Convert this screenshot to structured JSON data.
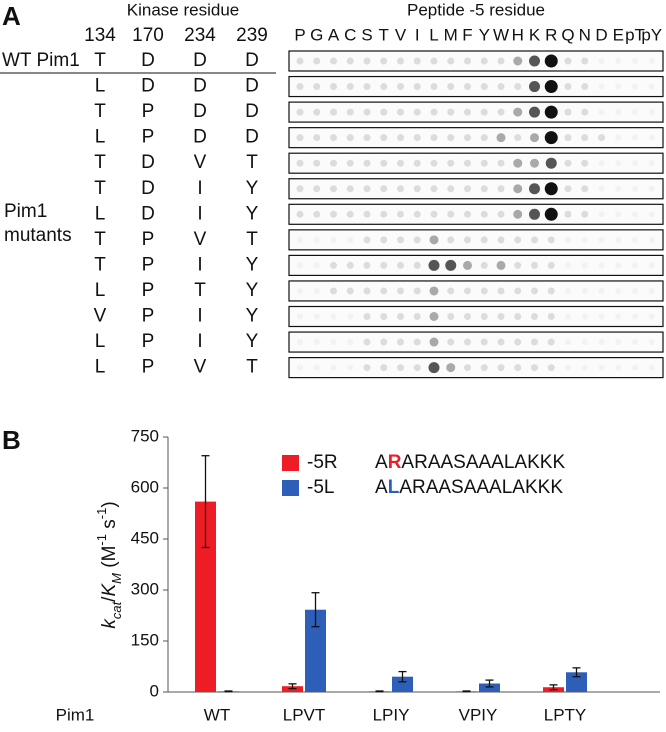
{
  "panel_a": {
    "label": "A",
    "kinase_header": "Kinase residue",
    "residue_numbers": [
      "134",
      "170",
      "234",
      "239"
    ],
    "peptide_header": "Peptide -5 residue",
    "peptide_residues": [
      "P",
      "G",
      "A",
      "C",
      "S",
      "T",
      "V",
      "I",
      "L",
      "M",
      "F",
      "Y",
      "W",
      "H",
      "K",
      "R",
      "Q",
      "N",
      "D",
      "E",
      "pT",
      "pY"
    ],
    "wt_label": "WT Pim1",
    "mutants_label": [
      "Pim1",
      "mutants"
    ],
    "rows": [
      [
        "T",
        "D",
        "D",
        "D"
      ],
      [
        "L",
        "D",
        "D",
        "D"
      ],
      [
        "T",
        "P",
        "D",
        "D"
      ],
      [
        "L",
        "P",
        "D",
        "D"
      ],
      [
        "T",
        "D",
        "V",
        "T"
      ],
      [
        "T",
        "D",
        "I",
        "Y"
      ],
      [
        "L",
        "D",
        "I",
        "Y"
      ],
      [
        "T",
        "P",
        "V",
        "T"
      ],
      [
        "T",
        "P",
        "I",
        "Y"
      ],
      [
        "L",
        "P",
        "T",
        "Y"
      ],
      [
        "V",
        "P",
        "I",
        "Y"
      ],
      [
        "L",
        "P",
        "I",
        "Y"
      ],
      [
        "L",
        "P",
        "V",
        "T"
      ]
    ],
    "spot_intensity": [
      [
        1,
        1,
        1,
        1,
        1,
        1,
        1,
        1,
        1,
        1,
        1,
        1,
        1,
        2,
        3,
        4,
        1,
        1,
        0,
        0,
        0,
        0
      ],
      [
        1,
        1,
        1,
        1,
        1,
        1,
        1,
        1,
        1,
        1,
        1,
        1,
        1,
        1,
        3,
        4,
        1,
        1,
        0,
        0,
        0,
        0
      ],
      [
        1,
        1,
        1,
        1,
        1,
        1,
        1,
        1,
        1,
        1,
        1,
        1,
        1,
        2,
        3,
        4,
        1,
        1,
        0,
        0,
        0,
        0
      ],
      [
        1,
        1,
        1,
        1,
        1,
        1,
        1,
        1,
        1,
        1,
        1,
        1,
        2,
        1,
        2,
        4,
        1,
        1,
        1,
        0,
        0,
        0
      ],
      [
        1,
        1,
        1,
        1,
        1,
        1,
        1,
        1,
        1,
        1,
        1,
        1,
        1,
        2,
        2,
        3,
        1,
        1,
        0,
        0,
        0,
        0
      ],
      [
        1,
        1,
        1,
        1,
        1,
        1,
        1,
        1,
        1,
        1,
        1,
        1,
        1,
        2,
        3,
        4,
        1,
        1,
        0,
        0,
        0,
        0
      ],
      [
        1,
        1,
        1,
        1,
        1,
        1,
        1,
        1,
        1,
        1,
        1,
        1,
        1,
        2,
        3,
        4,
        1,
        1,
        0,
        0,
        0,
        0
      ],
      [
        0,
        0,
        0,
        0,
        1,
        1,
        1,
        1,
        2,
        1,
        1,
        1,
        1,
        1,
        1,
        1,
        0,
        0,
        0,
        0,
        0,
        0
      ],
      [
        0,
        0,
        1,
        1,
        1,
        1,
        1,
        1,
        3,
        3,
        2,
        1,
        2,
        1,
        1,
        1,
        0,
        0,
        0,
        0,
        0,
        0
      ],
      [
        0,
        0,
        1,
        1,
        1,
        1,
        1,
        1,
        2,
        1,
        1,
        1,
        1,
        1,
        1,
        1,
        0,
        0,
        0,
        0,
        0,
        0
      ],
      [
        0,
        0,
        0,
        0,
        1,
        1,
        1,
        1,
        2,
        1,
        1,
        1,
        1,
        1,
        1,
        1,
        0,
        0,
        0,
        0,
        0,
        0
      ],
      [
        0,
        0,
        0,
        0,
        1,
        1,
        1,
        1,
        2,
        1,
        1,
        1,
        1,
        1,
        1,
        1,
        0,
        0,
        0,
        0,
        0,
        0
      ],
      [
        0,
        0,
        0,
        0,
        1,
        1,
        1,
        1,
        3,
        2,
        1,
        1,
        1,
        1,
        1,
        1,
        0,
        0,
        0,
        0,
        0,
        0
      ]
    ]
  },
  "chart_data": {
    "type": "bar",
    "label": "B",
    "ylabel_parts": [
      "k",
      "cat",
      "/",
      "K",
      "M",
      " (M",
      "-1",
      " s",
      "-1",
      ")"
    ],
    "x_axis_label": "Pim1",
    "categories": [
      "WT",
      "LPVT",
      "LPIY",
      "VPIY",
      "LPTY"
    ],
    "series": [
      {
        "name": "-5R",
        "color": "#ee1c24",
        "sequence": [
          "A",
          "R",
          "ARAASAAALAKKK"
        ],
        "values": [
          560,
          17,
          2,
          2,
          14
        ],
        "errors": [
          135,
          7,
          1,
          1,
          7
        ]
      },
      {
        "name": "-5L",
        "color": "#2e5fb8",
        "sequence": [
          "A",
          "L",
          "ARAASAAALAKKK"
        ],
        "values": [
          2,
          242,
          45,
          25,
          58
        ],
        "errors": [
          1,
          50,
          15,
          10,
          13
        ]
      }
    ],
    "ylim": [
      0,
      750
    ],
    "yticks": [
      0,
      150,
      300,
      450,
      600,
      750
    ]
  }
}
